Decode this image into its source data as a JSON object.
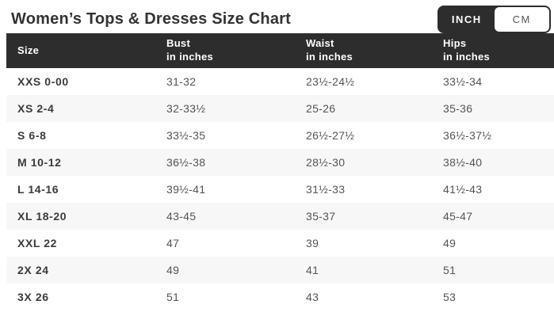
{
  "page": {
    "title": "Women’s Tops & Dresses Size Chart"
  },
  "unit_toggle": {
    "selected": "INCH",
    "options": [
      {
        "label": "INCH",
        "selected": true
      },
      {
        "label": "CM",
        "selected": false
      }
    ]
  },
  "colors": {
    "header_bg": "#2d2d2d",
    "alt_row_bg": "#f7f7f7",
    "title_text": "#333333",
    "value_text": "#555555"
  },
  "table": {
    "columns": [
      {
        "label": "Size",
        "sublabel": ""
      },
      {
        "label": "Bust",
        "sublabel": "in inches"
      },
      {
        "label": "Waist",
        "sublabel": "in inches"
      },
      {
        "label": "Hips",
        "sublabel": "in inches"
      }
    ],
    "rows": [
      {
        "size": "XXS 0-00",
        "bust": "31-32",
        "waist": "23½-24½",
        "hips": "33½-34"
      },
      {
        "size": "XS 2-4",
        "bust": "32-33½",
        "waist": "25-26",
        "hips": "35-36"
      },
      {
        "size": "S 6-8",
        "bust": "33½-35",
        "waist": "26½-27½",
        "hips": "36½-37½"
      },
      {
        "size": "M 10-12",
        "bust": "36½-38",
        "waist": "28½-30",
        "hips": "38½-40"
      },
      {
        "size": "L 14-16",
        "bust": "39½-41",
        "waist": "31½-33",
        "hips": "41½-43"
      },
      {
        "size": "XL 18-20",
        "bust": "43-45",
        "waist": "35-37",
        "hips": "45-47"
      },
      {
        "size": "XXL 22",
        "bust": "47",
        "waist": "39",
        "hips": "49"
      },
      {
        "size": "2X 24",
        "bust": "49",
        "waist": "41",
        "hips": "51"
      },
      {
        "size": "3X 26",
        "bust": "51",
        "waist": "43",
        "hips": "53"
      }
    ]
  }
}
